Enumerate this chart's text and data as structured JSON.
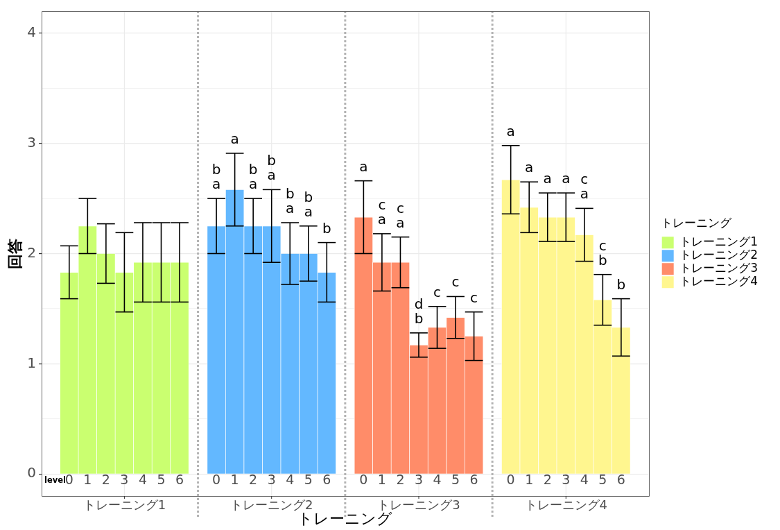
{
  "chart_data": {
    "type": "bar",
    "xlabel": "トレーニング",
    "ylabel": "回答",
    "legend_title": "トレーニング",
    "legend": "right",
    "grid": true,
    "categories": [
      null,
      "0",
      "1",
      "2",
      "3",
      "4",
      "5",
      "6",
      null,
      "0",
      "1",
      "2",
      "3",
      "4",
      "5",
      "6",
      null,
      "0",
      "1",
      "2",
      "3",
      "4",
      "5",
      "6",
      null,
      "0",
      "1",
      "2",
      "3",
      "4",
      "5",
      "6",
      null
    ],
    "ylim": [
      -0.2,
      4.2
    ],
    "yticks": [
      0,
      {
        "value": 0.5,
        "label": null
      },
      1,
      {
        "value": 1.5,
        "label": null
      },
      2,
      {
        "value": 2.5,
        "label": null
      },
      3,
      {
        "value": 3.5,
        "label": null
      },
      4
    ],
    "series": [
      {
        "name": "トレーニング1",
        "color": "#caff70",
        "values": [
          null,
          1.83,
          2.25,
          2.0,
          1.83,
          1.92,
          1.92,
          1.92,
          null,
          null,
          null,
          null,
          null,
          null,
          null,
          null,
          null,
          null,
          null,
          null,
          null,
          null,
          null,
          null,
          null,
          null,
          null,
          null,
          null,
          null,
          null,
          null,
          null
        ],
        "errors": [
          null,
          0.24,
          0.25,
          0.27,
          0.36,
          0.36,
          0.36,
          0.36,
          null,
          null,
          null,
          null,
          null,
          null,
          null,
          null,
          null,
          null,
          null,
          null,
          null,
          null,
          null,
          null,
          null,
          null,
          null,
          null,
          null,
          null,
          null,
          null,
          null
        ]
      },
      {
        "name": "トレーニング2",
        "color": "#63b8ff",
        "values": [
          null,
          null,
          null,
          null,
          null,
          null,
          null,
          null,
          null,
          2.25,
          2.58,
          2.25,
          2.25,
          2.0,
          2.0,
          1.83,
          null,
          null,
          null,
          null,
          null,
          null,
          null,
          null,
          null,
          null,
          null,
          null,
          null,
          null,
          null,
          null,
          null
        ],
        "errors": [
          null,
          null,
          null,
          null,
          null,
          null,
          null,
          null,
          null,
          0.25,
          0.33,
          0.25,
          0.33,
          0.28,
          0.25,
          0.27,
          null,
          null,
          null,
          null,
          null,
          null,
          null,
          null,
          null,
          null,
          null,
          null,
          null,
          null,
          null,
          null,
          null
        ],
        "value_labels": [
          null,
          null,
          null,
          null,
          null,
          null,
          null,
          null,
          null,
          "b\na",
          "a",
          "b\na",
          "b\na",
          "b\na",
          "b\na",
          "b",
          null,
          null,
          null,
          null,
          null,
          null,
          null,
          null,
          null,
          null,
          null,
          null,
          null,
          null,
          null,
          null,
          null
        ]
      },
      {
        "name": "トレーニング3",
        "color": "#ff8c69",
        "values": [
          null,
          null,
          null,
          null,
          null,
          null,
          null,
          null,
          null,
          null,
          null,
          null,
          null,
          null,
          null,
          null,
          null,
          2.33,
          1.92,
          1.92,
          1.17,
          1.33,
          1.42,
          1.25,
          null,
          null,
          null,
          null,
          null,
          null,
          null,
          null,
          null
        ],
        "errors": [
          null,
          null,
          null,
          null,
          null,
          null,
          null,
          null,
          null,
          null,
          null,
          null,
          null,
          null,
          null,
          null,
          null,
          0.33,
          0.26,
          0.23,
          0.11,
          0.19,
          0.19,
          0.22,
          null,
          null,
          null,
          null,
          null,
          null,
          null,
          null,
          null
        ],
        "value_labels": [
          null,
          null,
          null,
          null,
          null,
          null,
          null,
          null,
          null,
          null,
          null,
          null,
          null,
          null,
          null,
          null,
          null,
          "a",
          "c\na",
          "c\na",
          "d\nb",
          "c",
          "c",
          "c",
          null,
          null,
          null,
          null,
          null,
          null,
          null,
          null,
          null
        ]
      },
      {
        "name": "トレーニング4",
        "color": "#fff68f",
        "values": [
          null,
          null,
          null,
          null,
          null,
          null,
          null,
          null,
          null,
          null,
          null,
          null,
          null,
          null,
          null,
          null,
          null,
          null,
          null,
          null,
          null,
          null,
          null,
          null,
          null,
          2.67,
          2.42,
          2.33,
          2.33,
          2.17,
          1.58,
          1.33,
          null
        ],
        "errors": [
          null,
          null,
          null,
          null,
          null,
          null,
          null,
          null,
          null,
          null,
          null,
          null,
          null,
          null,
          null,
          null,
          null,
          null,
          null,
          null,
          null,
          null,
          null,
          null,
          null,
          0.31,
          0.23,
          0.22,
          0.22,
          0.24,
          0.23,
          0.26,
          null
        ],
        "value_labels": [
          null,
          null,
          null,
          null,
          null,
          null,
          null,
          null,
          null,
          null,
          null,
          null,
          null,
          null,
          null,
          null,
          null,
          null,
          null,
          null,
          null,
          null,
          null,
          null,
          null,
          "a",
          "a",
          "a",
          "a",
          "c\na",
          "c\nb",
          "b",
          null
        ]
      }
    ],
    "annotations": [
      "level"
    ]
  }
}
